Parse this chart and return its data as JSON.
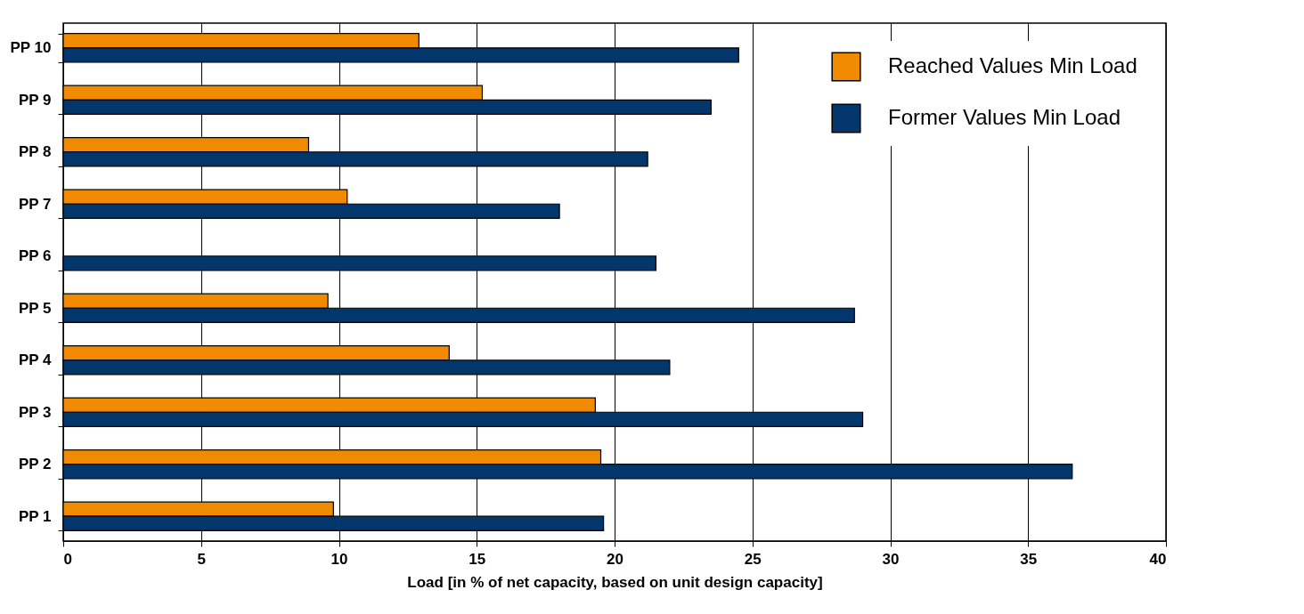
{
  "chart_data": {
    "type": "bar",
    "orientation": "horizontal",
    "xlabel": "Load [in % of net capacity, based on unit design capacity]",
    "categories": [
      "PP 10",
      "PP 9",
      "PP 8",
      "PP 7",
      "PP 6",
      "PP 5",
      "PP 4",
      "PP 3",
      "PP 2",
      "PP 1"
    ],
    "series": [
      {
        "name": "Reached Values Min Load",
        "color": "#f08a00",
        "values": [
          12.9,
          15.2,
          8.9,
          10.3,
          null,
          9.6,
          14.0,
          19.3,
          19.5,
          9.8
        ]
      },
      {
        "name": "Former Values Min Load",
        "color": "#03376b",
        "values": [
          24.5,
          23.5,
          21.2,
          18.0,
          21.5,
          28.7,
          22.0,
          29.0,
          36.6,
          19.6
        ]
      }
    ],
    "xlim": [
      0,
      40
    ],
    "xticks": [
      0,
      5,
      10,
      15,
      20,
      25,
      30,
      35,
      40
    ],
    "grid": "x",
    "legend": "top right"
  }
}
